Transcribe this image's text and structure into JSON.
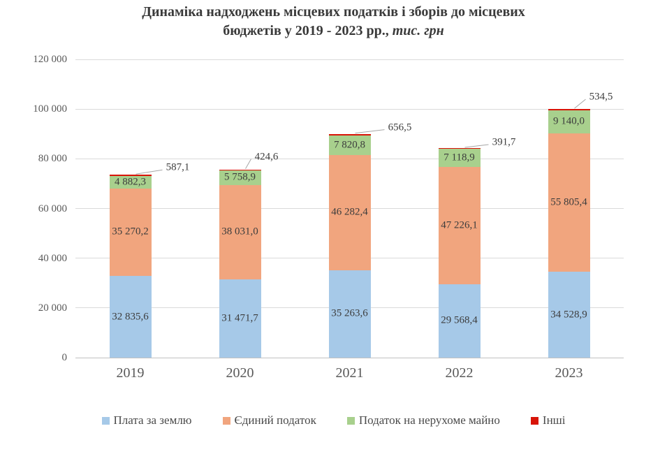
{
  "title": {
    "line1": "Динаміка надходжень місцевих податків і зборів до місцевих",
    "line2_regular": "бюджетів у 2019 - 2023 рр., ",
    "line2_italic": "тис. грн"
  },
  "chart_data": {
    "type": "bar",
    "stacked": true,
    "title": "Динаміка надходжень місцевих податків і зборів до місцевих бюджетів у 2019 - 2023 рр., тис. грн",
    "unit": "тис. грн",
    "categories": [
      "2019",
      "2020",
      "2021",
      "2022",
      "2023"
    ],
    "series": [
      {
        "name": "Плата за землю",
        "color": "#a6c9e8",
        "values": [
          32835.6,
          31471.7,
          35263.6,
          29568.4,
          34528.9
        ],
        "labels": [
          "32 835,6",
          "31 471,7",
          "35 263,6",
          "29 568,4",
          "34 528,9"
        ],
        "labels_outside": false
      },
      {
        "name": "Єдиний податок",
        "color": "#f1a57e",
        "values": [
          35270.2,
          38031.0,
          46282.4,
          47226.1,
          55805.4
        ],
        "labels": [
          "35 270,2",
          "38 031,0",
          "46 282,4",
          "47 226,1",
          "55 805,4"
        ],
        "labels_outside": false
      },
      {
        "name": "Податок на нерухоме майно",
        "color": "#a8d08d",
        "values": [
          4882.3,
          5758.9,
          7820.8,
          7118.9,
          9140.0
        ],
        "labels": [
          "4 882,3",
          "5 758,9",
          "7 820,8",
          "7 118,9",
          "9 140,0"
        ],
        "labels_outside": false
      },
      {
        "name": "Інші",
        "color": "#d81408",
        "values": [
          587.1,
          424.6,
          656.5,
          391.7,
          534.5
        ],
        "labels": [
          "587,1",
          "424,6",
          "656,5",
          "391,7",
          "534,5"
        ],
        "labels_outside": true
      }
    ],
    "y_axis": {
      "min": 0,
      "max": 120000,
      "step": 20000,
      "tick_labels": [
        "0",
        "20 000",
        "40 000",
        "60 000",
        "80 000",
        "100 000",
        "120 000"
      ]
    },
    "x_axis": {
      "tick_labels": [
        "2019",
        "2020",
        "2021",
        "2022",
        "2023"
      ]
    },
    "gridlines": true,
    "legend_position": "bottom"
  }
}
